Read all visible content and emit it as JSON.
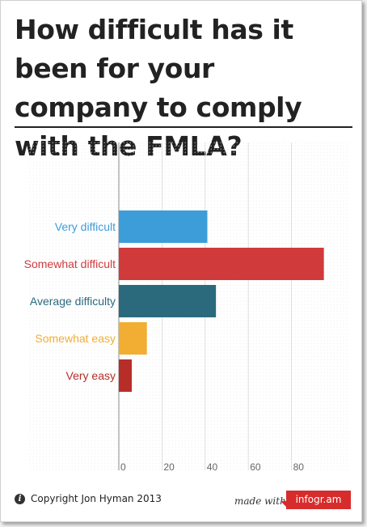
{
  "title": "How difficult has it been for your company to comply with the FMLA?",
  "footer": {
    "info_icon": "info-icon",
    "copyright": "Copyright Jon Hyman 2013",
    "made_with": "made with",
    "brand": "infogr.am"
  },
  "colors": {
    "grid": "#d8d8d8",
    "axis": "#888888",
    "brand": "#d62c2c"
  },
  "chart_data": {
    "type": "bar",
    "orientation": "horizontal",
    "categories": [
      "Very difficult",
      "Somewhat difficult",
      "Average difficulty",
      "Somewhat easy",
      "Very easy"
    ],
    "values": [
      41,
      95,
      45,
      13,
      6
    ],
    "colors": [
      "#3c9dd9",
      "#d13a3a",
      "#2a6a7c",
      "#f2ae33",
      "#b72d28"
    ],
    "xticks": [
      0,
      20,
      40,
      60,
      80
    ],
    "xlim": [
      0,
      110
    ],
    "grid": true,
    "title": "",
    "xlabel": "",
    "ylabel": ""
  }
}
